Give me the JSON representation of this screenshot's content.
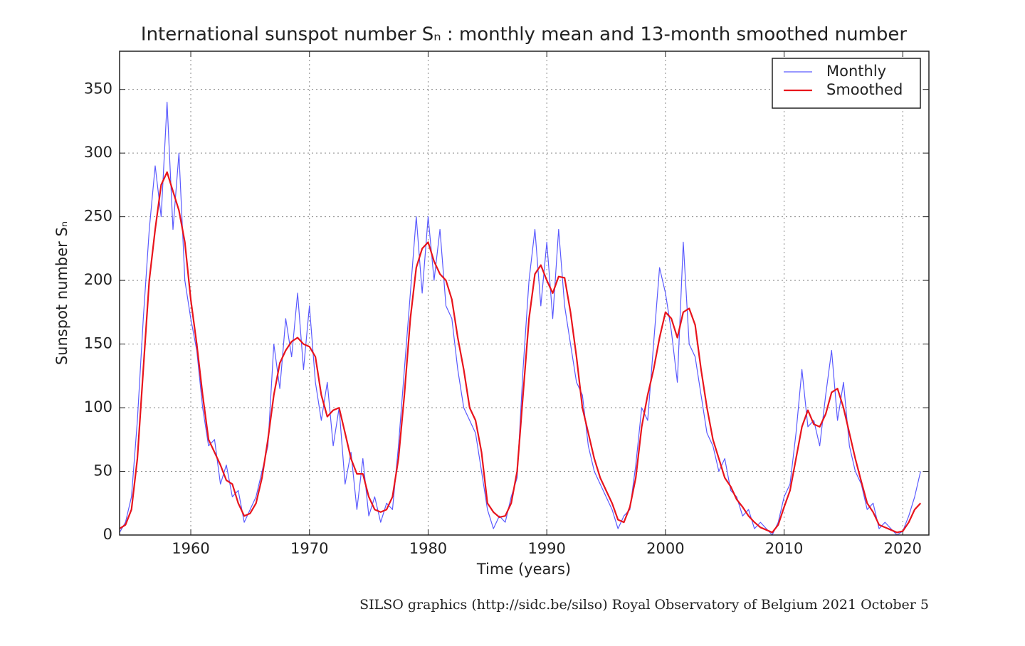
{
  "chart_data": {
    "type": "line",
    "title": "International sunspot number Sₙ : monthly mean and 13-month smoothed number",
    "x_label": "Time (years)",
    "y_label": "Sunspot number Sₙ",
    "footer": "SILSO graphics (http://sidc.be/silso)  Royal Observatory of Belgium  2021 October 5",
    "xlim": [
      1954,
      2022.2
    ],
    "xticks": [
      1960,
      1970,
      1980,
      1990,
      2000,
      2010,
      2020
    ],
    "ylim": [
      0,
      380
    ],
    "yticks": [
      0,
      50,
      100,
      150,
      200,
      250,
      300,
      350
    ],
    "grid": true,
    "legend": "upper right",
    "x": [
      1954,
      1954.5,
      1955,
      1955.5,
      1956,
      1956.5,
      1957,
      1957.5,
      1958,
      1958.5,
      1959,
      1959.5,
      1960,
      1960.5,
      1961,
      1961.5,
      1962,
      1962.5,
      1963,
      1963.5,
      1964,
      1964.5,
      1965,
      1965.5,
      1966,
      1966.5,
      1967,
      1967.5,
      1968,
      1968.5,
      1969,
      1969.5,
      1970,
      1970.5,
      1971,
      1971.5,
      1972,
      1972.5,
      1973,
      1973.5,
      1974,
      1974.5,
      1975,
      1975.5,
      1976,
      1976.5,
      1977,
      1977.5,
      1978,
      1978.5,
      1979,
      1979.5,
      1980,
      1980.5,
      1981,
      1981.5,
      1982,
      1982.5,
      1983,
      1983.5,
      1984,
      1984.5,
      1985,
      1985.5,
      1986,
      1986.5,
      1987,
      1987.5,
      1988,
      1988.5,
      1989,
      1989.5,
      1990,
      1990.5,
      1991,
      1991.5,
      1992,
      1992.5,
      1993,
      1993.5,
      1994,
      1994.5,
      1995,
      1995.5,
      1996,
      1996.5,
      1997,
      1997.5,
      1998,
      1998.5,
      1999,
      1999.5,
      2000,
      2000.5,
      2001,
      2001.5,
      2002,
      2002.5,
      2003,
      2003.5,
      2004,
      2004.5,
      2005,
      2005.5,
      2006,
      2006.5,
      2007,
      2007.5,
      2008,
      2008.5,
      2009,
      2009.5,
      2010,
      2010.5,
      2011,
      2011.5,
      2012,
      2012.5,
      2013,
      2013.5,
      2014,
      2014.5,
      2015,
      2015.5,
      2016,
      2016.5,
      2017,
      2017.5,
      2018,
      2018.5,
      2019,
      2019.5,
      2020,
      2020.5,
      2021,
      2021.5
    ],
    "series": [
      {
        "name": "Monthly",
        "color": "#5a5aff",
        "width": 1.2,
        "values": [
          2,
          10,
          30,
          90,
          170,
          240,
          290,
          250,
          340,
          240,
          300,
          200,
          170,
          145,
          100,
          70,
          75,
          40,
          55,
          30,
          35,
          10,
          20,
          30,
          50,
          70,
          150,
          115,
          170,
          140,
          190,
          130,
          180,
          120,
          90,
          120,
          70,
          100,
          40,
          65,
          20,
          60,
          15,
          30,
          10,
          25,
          20,
          70,
          130,
          190,
          250,
          190,
          250,
          200,
          240,
          180,
          170,
          130,
          100,
          90,
          80,
          50,
          20,
          5,
          15,
          10,
          30,
          45,
          130,
          200,
          240,
          180,
          230,
          170,
          240,
          180,
          150,
          120,
          110,
          70,
          50,
          40,
          30,
          20,
          5,
          15,
          20,
          55,
          100,
          90,
          150,
          210,
          190,
          160,
          120,
          230,
          150,
          140,
          110,
          80,
          70,
          50,
          60,
          35,
          30,
          15,
          20,
          5,
          10,
          5,
          0,
          10,
          30,
          40,
          80,
          130,
          85,
          90,
          70,
          110,
          145,
          90,
          120,
          70,
          50,
          40,
          20,
          25,
          5,
          10,
          5,
          0,
          3,
          15,
          30,
          50
        ]
      },
      {
        "name": "Smoothed",
        "color": "#e8141c",
        "width": 2.2,
        "values": [
          5,
          8,
          20,
          60,
          130,
          200,
          240,
          275,
          285,
          270,
          255,
          230,
          185,
          150,
          110,
          75,
          65,
          55,
          43,
          40,
          25,
          15,
          17,
          25,
          45,
          75,
          110,
          135,
          145,
          152,
          155,
          150,
          148,
          140,
          110,
          93,
          98,
          100,
          80,
          60,
          48,
          48,
          30,
          20,
          18,
          20,
          30,
          60,
          110,
          170,
          210,
          225,
          230,
          215,
          205,
          200,
          185,
          155,
          130,
          100,
          90,
          65,
          25,
          18,
          14,
          15,
          25,
          50,
          110,
          170,
          205,
          212,
          200,
          190,
          203,
          202,
          175,
          140,
          100,
          80,
          60,
          45,
          35,
          25,
          12,
          10,
          22,
          45,
          85,
          110,
          130,
          155,
          175,
          170,
          155,
          175,
          178,
          165,
          130,
          100,
          75,
          60,
          45,
          38,
          28,
          22,
          15,
          10,
          6,
          4,
          2,
          8,
          22,
          35,
          60,
          85,
          98,
          87,
          85,
          95,
          112,
          115,
          100,
          80,
          60,
          42,
          25,
          18,
          8,
          6,
          4,
          2,
          3,
          10,
          20,
          25
        ]
      }
    ]
  }
}
